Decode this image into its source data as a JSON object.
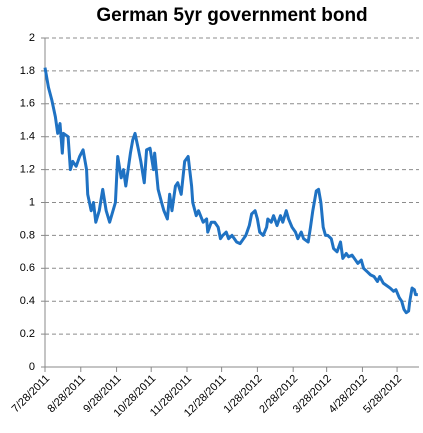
{
  "chart_data": {
    "type": "line",
    "title": "German 5yr government bond",
    "x": [
      "2011-07-28",
      "2011-07-31",
      "2011-08-03",
      "2011-08-06",
      "2011-08-08",
      "2011-08-10",
      "2011-08-12",
      "2011-08-13",
      "2011-08-17",
      "2011-08-19",
      "2011-08-21",
      "2011-08-24",
      "2011-08-27",
      "2011-08-30",
      "2011-09-02",
      "2011-09-03",
      "2011-09-06",
      "2011-09-08",
      "2011-09-10",
      "2011-09-13",
      "2011-09-16",
      "2011-09-19",
      "2011-09-22",
      "2011-09-27",
      "2011-09-29",
      "2011-10-02",
      "2011-10-04",
      "2011-10-06",
      "2011-10-10",
      "2011-10-12",
      "2011-10-14",
      "2011-10-17",
      "2011-10-19",
      "2011-10-22",
      "2011-10-24",
      "2011-10-27",
      "2011-10-30",
      "2011-10-31",
      "2011-11-03",
      "2011-11-06",
      "2011-11-08",
      "2011-11-11",
      "2011-11-13",
      "2011-11-15",
      "2011-11-18",
      "2011-11-20",
      "2011-11-23",
      "2011-11-26",
      "2011-11-29",
      "2011-12-02",
      "2011-12-03",
      "2011-12-06",
      "2011-12-08",
      "2011-12-12",
      "2011-12-15",
      "2011-12-16",
      "2011-12-19",
      "2011-12-22",
      "2011-12-25",
      "2011-12-27",
      "2011-12-29",
      "2012-01-01",
      "2012-01-03",
      "2012-01-06",
      "2012-01-10",
      "2012-01-13",
      "2012-01-16",
      "2012-01-18",
      "2012-01-21",
      "2012-01-23",
      "2012-01-26",
      "2012-01-28",
      "2012-01-30",
      "2012-02-02",
      "2012-02-05",
      "2012-02-06",
      "2012-02-09",
      "2012-02-11",
      "2012-02-14",
      "2012-02-17",
      "2012-02-19",
      "2012-02-22",
      "2012-02-24",
      "2012-02-27",
      "2012-03-01",
      "2012-03-03",
      "2012-03-06",
      "2012-03-08",
      "2012-03-12",
      "2012-03-14",
      "2012-03-16",
      "2012-03-19",
      "2012-03-21",
      "2012-03-23",
      "2012-03-25",
      "2012-03-27",
      "2012-03-29",
      "2012-04-01",
      "2012-04-03",
      "2012-04-06",
      "2012-04-09",
      "2012-04-11",
      "2012-04-14",
      "2012-04-16",
      "2012-04-19",
      "2012-04-22",
      "2012-04-24",
      "2012-04-27",
      "2012-04-29",
      "2012-05-02",
      "2012-05-05",
      "2012-05-08",
      "2012-05-11",
      "2012-05-13",
      "2012-05-16",
      "2012-05-18",
      "2012-05-22",
      "2012-05-25",
      "2012-05-27",
      "2012-05-30",
      "2012-06-01",
      "2012-06-03",
      "2012-06-05",
      "2012-06-07",
      "2012-06-08",
      "2012-06-10",
      "2012-06-12",
      "2012-06-13",
      "2012-06-15"
    ],
    "series": [
      {
        "color": "#1f72c3",
        "values": [
          1.82,
          1.7,
          1.62,
          1.52,
          1.42,
          1.48,
          1.3,
          1.42,
          1.4,
          1.2,
          1.25,
          1.22,
          1.28,
          1.32,
          1.2,
          1.05,
          0.95,
          1.0,
          0.88,
          0.95,
          1.08,
          0.95,
          0.88,
          1.0,
          1.28,
          1.15,
          1.2,
          1.1,
          1.3,
          1.38,
          1.42,
          1.32,
          1.25,
          1.12,
          1.32,
          1.33,
          1.2,
          1.3,
          1.08,
          1.0,
          0.95,
          0.9,
          1.05,
          0.95,
          1.1,
          1.12,
          1.05,
          1.25,
          1.28,
          1.1,
          1.0,
          0.92,
          0.95,
          0.88,
          0.9,
          0.82,
          0.88,
          0.88,
          0.85,
          0.78,
          0.8,
          0.82,
          0.78,
          0.8,
          0.76,
          0.75,
          0.78,
          0.8,
          0.86,
          0.93,
          0.95,
          0.9,
          0.82,
          0.8,
          0.85,
          0.9,
          0.88,
          0.92,
          0.86,
          0.92,
          0.88,
          0.95,
          0.9,
          0.85,
          0.82,
          0.78,
          0.82,
          0.78,
          0.76,
          0.85,
          0.95,
          1.07,
          1.08,
          1.0,
          0.85,
          0.8,
          0.8,
          0.78,
          0.72,
          0.7,
          0.76,
          0.66,
          0.69,
          0.67,
          0.68,
          0.65,
          0.63,
          0.65,
          0.6,
          0.58,
          0.56,
          0.55,
          0.52,
          0.55,
          0.51,
          0.5,
          0.48,
          0.46,
          0.47,
          0.42,
          0.4,
          0.35,
          0.33,
          0.34,
          0.4,
          0.48,
          0.47,
          0.44,
          0.44
        ]
      }
    ],
    "xlim": [
      "2011-07-28",
      "2012-06-16"
    ],
    "xticks": [
      {
        "value": "2011-07-28",
        "label": "7/28/2011"
      },
      {
        "value": "2011-08-28",
        "label": "8/28/2011"
      },
      {
        "value": "2011-09-28",
        "label": "9/28/2011"
      },
      {
        "value": "2011-10-28",
        "label": "10/28/2011"
      },
      {
        "value": "2011-11-28",
        "label": "11/28/2011"
      },
      {
        "value": "2011-12-28",
        "label": "12/28/2011"
      },
      {
        "value": "2012-01-28",
        "label": "1/28/2012"
      },
      {
        "value": "2012-02-28",
        "label": "2/28/2012"
      },
      {
        "value": "2012-03-28",
        "label": "3/28/2012"
      },
      {
        "value": "2012-04-28",
        "label": "4/28/2012"
      },
      {
        "value": "2012-05-28",
        "label": "5/28/2012"
      }
    ],
    "ylim": [
      0,
      2
    ],
    "yticks": [
      0,
      0.2,
      0.4,
      0.6,
      0.8,
      1,
      1.2,
      1.4,
      1.6,
      1.8,
      2
    ],
    "grid": true
  }
}
